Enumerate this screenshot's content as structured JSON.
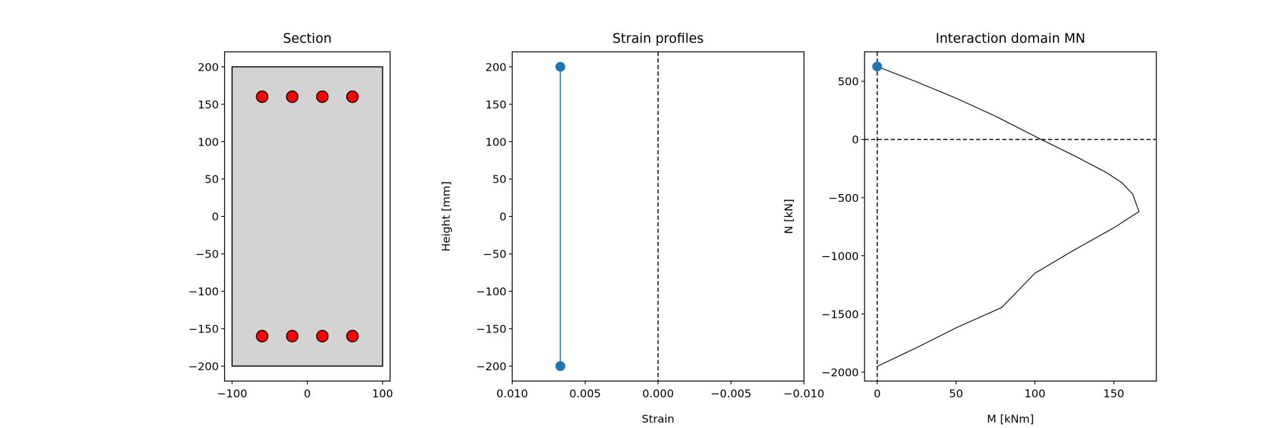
{
  "chart_data": [
    {
      "type": "scatter",
      "title": "Section",
      "xlabel": "",
      "ylabel": "",
      "xlim": [
        -110,
        110
      ],
      "ylim": [
        -220,
        220
      ],
      "xticks": [
        -100,
        0,
        100
      ],
      "yticks": [
        -200,
        -150,
        -100,
        -50,
        0,
        50,
        100,
        150,
        200
      ],
      "rectangle": {
        "x": [
          -100,
          100
        ],
        "y": [
          -200,
          200
        ],
        "fill": "#d3d3d3",
        "edge": "#000000"
      },
      "bars": {
        "x": [
          -60,
          -20,
          20,
          60,
          -60,
          -20,
          20,
          60
        ],
        "y": [
          160,
          160,
          160,
          160,
          -160,
          -160,
          -160,
          -160
        ],
        "color": "#ff0000"
      }
    },
    {
      "type": "line",
      "title": "Strain profiles",
      "xlabel": "Strain",
      "ylabel": "Height [mm]",
      "xlim": [
        0.01,
        -0.01
      ],
      "ylim": [
        -220,
        220
      ],
      "xticks": [
        "0.010",
        "0.005",
        "0.000",
        "−0.005",
        "−0.010"
      ],
      "xtick_values": [
        0.01,
        0.005,
        0,
        -0.005,
        -0.01
      ],
      "yticks": [
        -200,
        -150,
        -100,
        -50,
        0,
        50,
        100,
        150,
        200
      ],
      "series": [
        {
          "x": [
            0.0067,
            0.0067
          ],
          "y": [
            200,
            -200
          ],
          "color": "#1f77b4",
          "marker": "circle"
        }
      ],
      "reference_line": {
        "x": 0,
        "style": "dashed"
      }
    },
    {
      "type": "line",
      "title": "Interaction domain MN",
      "xlabel": "M [kNm]",
      "ylabel": "N [kN]",
      "xlim": [
        -8,
        177
      ],
      "ylim": [
        -2077,
        753
      ],
      "xticks": [
        0,
        50,
        100,
        150
      ],
      "yticks": [
        -2000,
        -1500,
        -1000,
        -500,
        0,
        500
      ],
      "series": [
        {
          "x": [
            0,
            25,
            50,
            75,
            104,
            125,
            145,
            155,
            162,
            166,
            150,
            125,
            100,
            79,
            50,
            25,
            0
          ],
          "y": [
            627,
            495,
            355,
            200,
            0,
            -140,
            -282,
            -370,
            -470,
            -620,
            -760,
            -950,
            -1150,
            -1444,
            -1620,
            -1790,
            -1951
          ],
          "color": "#000000"
        }
      ],
      "point": {
        "x": 0,
        "y": 627,
        "color": "#1f77b4"
      },
      "reference_lines": [
        {
          "x": 0,
          "style": "dashed"
        },
        {
          "y": 0,
          "style": "dashed"
        }
      ]
    }
  ]
}
